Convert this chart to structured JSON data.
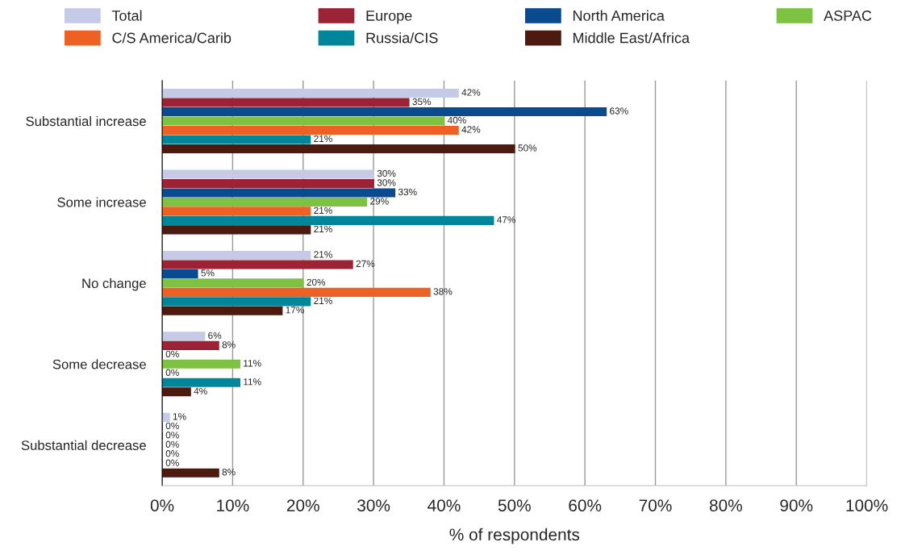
{
  "chart_data": {
    "type": "bar",
    "orientation": "horizontal",
    "xlabel": "% of respondents",
    "categories": [
      "Substantial increase",
      "Some increase",
      "No change",
      "Some decrease",
      "Substantial decrease"
    ],
    "series": [
      {
        "name": "Total",
        "color": "#c5cae6",
        "values": [
          42,
          30,
          21,
          6,
          1
        ],
        "value_labels": [
          "42%",
          "30%",
          "21%",
          "6%",
          "1%"
        ]
      },
      {
        "name": "Europe",
        "color": "#9b2335",
        "values": [
          35,
          30,
          27,
          8,
          0
        ],
        "value_labels": [
          "35%",
          "30%",
          "27%",
          "8%",
          "0%"
        ]
      },
      {
        "name": "North America",
        "color": "#0a4a8f",
        "values": [
          63,
          33,
          5,
          0,
          0
        ],
        "value_labels": [
          "63%",
          "33%",
          "5%",
          "0%",
          "0%"
        ]
      },
      {
        "name": "ASPAC",
        "color": "#7dc242",
        "values": [
          40,
          29,
          20,
          11,
          0
        ],
        "value_labels": [
          "40%",
          "29%",
          "20%",
          "11%",
          "0%"
        ]
      },
      {
        "name": "C/S America/Carib",
        "color": "#ee6125",
        "values": [
          42,
          21,
          38,
          0,
          0
        ],
        "value_labels": [
          "42%",
          "21%",
          "38%",
          "0%",
          "0%"
        ]
      },
      {
        "name": "Russia/CIS",
        "color": "#00869a",
        "values": [
          21,
          47,
          21,
          11,
          0
        ],
        "value_labels": [
          "21%",
          "47%",
          "21%",
          "11%",
          "0%"
        ]
      },
      {
        "name": "Middle East/Africa",
        "color": "#4d1a0f",
        "values": [
          50,
          21,
          17,
          4,
          8
        ],
        "value_labels": [
          "50%",
          "21%",
          "17%",
          "4%",
          "8%"
        ]
      }
    ],
    "xlim": [
      0,
      100
    ],
    "xticks": [
      {
        "value": 0,
        "label": "0%"
      },
      {
        "value": 10,
        "label": "10%"
      },
      {
        "value": 20,
        "label": "20%"
      },
      {
        "value": 30,
        "label": "30%"
      },
      {
        "value": 40,
        "label": "40%"
      },
      {
        "value": 50,
        "label": "50%"
      },
      {
        "value": 60,
        "label": "60%"
      },
      {
        "value": 70,
        "label": "70%"
      },
      {
        "value": 80,
        "label": "80%"
      },
      {
        "value": 90,
        "label": "90%"
      },
      {
        "value": 100,
        "label": "100%"
      }
    ],
    "grid": "x",
    "legend": "top"
  }
}
